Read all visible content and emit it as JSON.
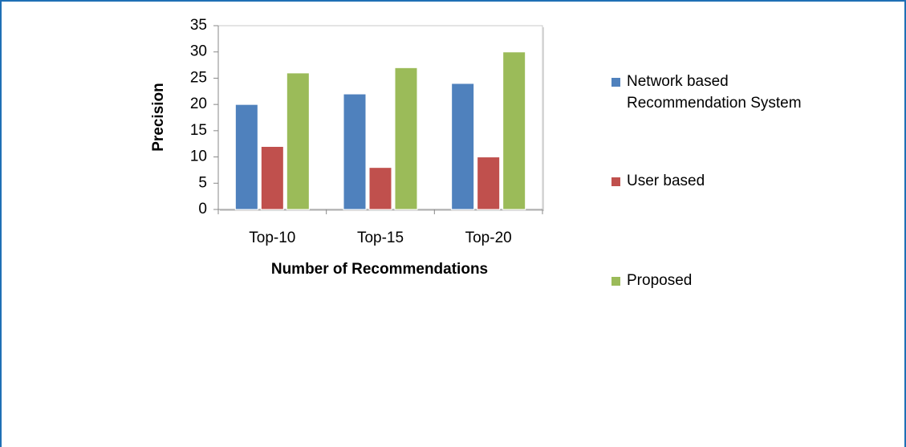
{
  "chart_data": {
    "type": "bar",
    "categories": [
      "Top-10",
      "Top-15",
      "Top-20"
    ],
    "series": [
      {
        "name": "Network based Recommendation System",
        "color": "#4f81bd",
        "values": [
          20,
          22,
          24
        ]
      },
      {
        "name": "User based",
        "color": "#c0504d",
        "values": [
          12,
          8,
          10
        ]
      },
      {
        "name": "Proposed",
        "color": "#9bbb59",
        "values": [
          26,
          27,
          30
        ]
      }
    ],
    "x_label": "Number of Recommendations",
    "y_label": "Precision",
    "ylim": [
      0,
      35
    ],
    "yticks": [
      0,
      5,
      10,
      15,
      20,
      25,
      30,
      35
    ],
    "legend": "right"
  }
}
